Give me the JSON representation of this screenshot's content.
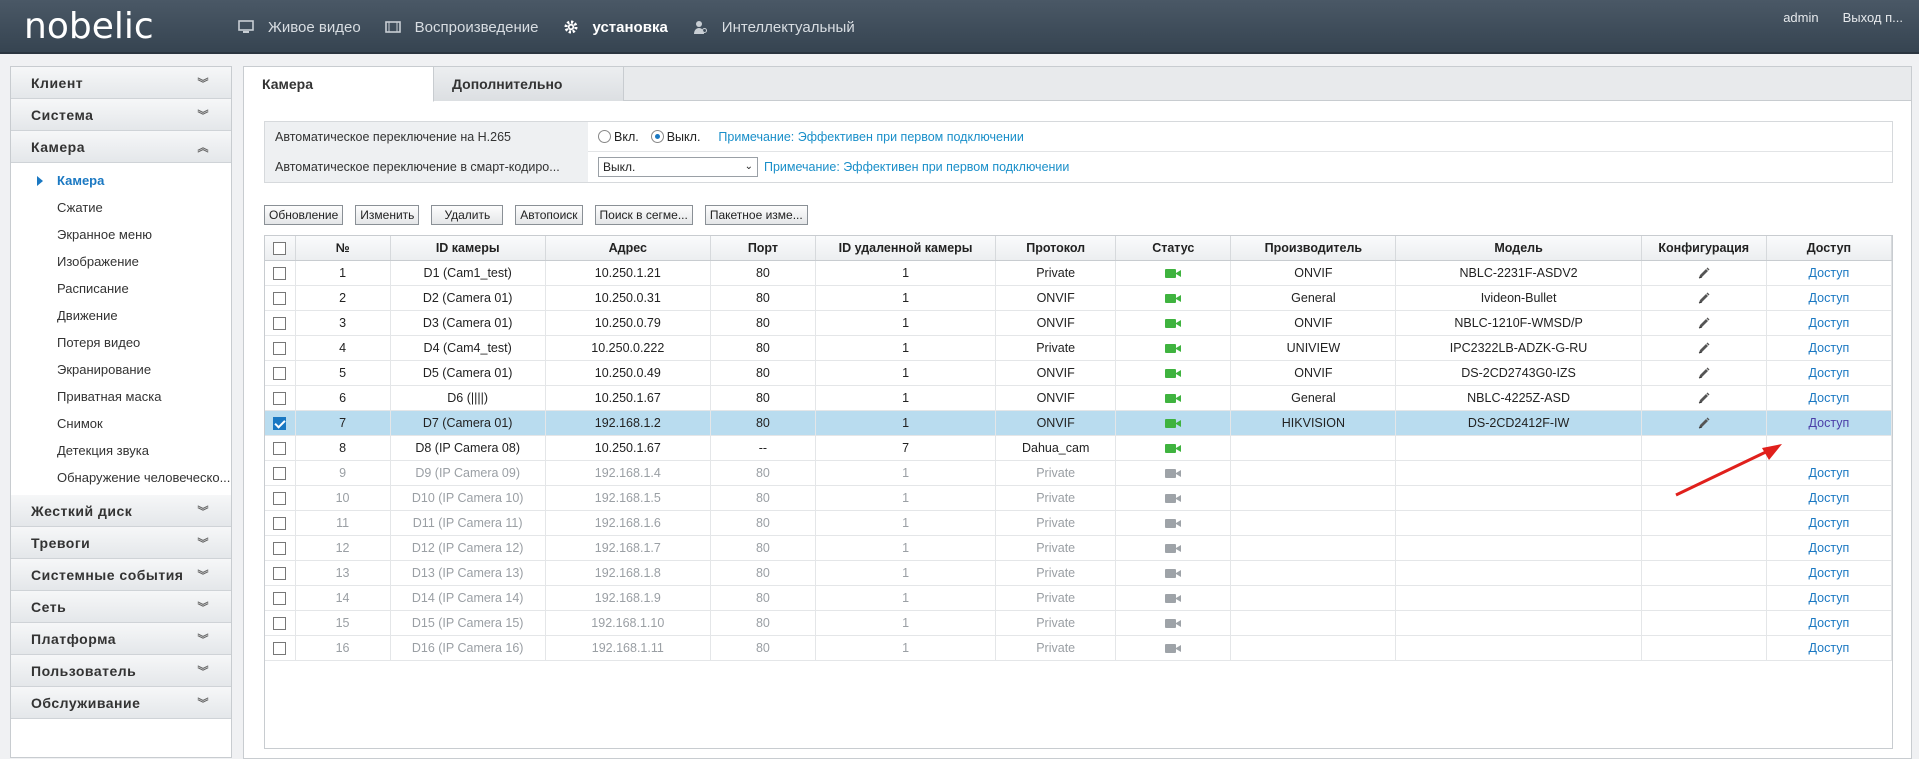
{
  "brand": {
    "logo": "nobelic"
  },
  "nav": [
    {
      "label": "Живое видео",
      "icon": "monitor-icon",
      "active": false
    },
    {
      "label": "Воспроизведение",
      "icon": "film-icon",
      "active": false
    },
    {
      "label": "установка",
      "icon": "gear-icon",
      "active": true
    },
    {
      "label": "Интеллектуальный",
      "icon": "person-icon",
      "active": false
    }
  ],
  "user": {
    "name": "admin",
    "logout": "Выход п..."
  },
  "sidebar": {
    "sections_top": [
      {
        "label": "Клиент"
      },
      {
        "label": "Система"
      }
    ],
    "camera_section": {
      "label": "Камера"
    },
    "camera_items": [
      {
        "label": "Камера",
        "active": true
      },
      {
        "label": "Сжатие"
      },
      {
        "label": "Экранное меню"
      },
      {
        "label": "Изображение"
      },
      {
        "label": "Расписание"
      },
      {
        "label": "Движение"
      },
      {
        "label": "Потеря видео"
      },
      {
        "label": "Экранирование"
      },
      {
        "label": "Приватная маска"
      },
      {
        "label": "Снимок"
      },
      {
        "label": "Детекция звука"
      },
      {
        "label": "Обнаружение человеческо..."
      }
    ],
    "sections_bottom": [
      {
        "label": "Жесткий диск"
      },
      {
        "label": "Тревоги"
      },
      {
        "label": "Системные события"
      },
      {
        "label": "Сеть"
      },
      {
        "label": "Платформа"
      },
      {
        "label": "Пользователь"
      },
      {
        "label": "Обслуживание"
      }
    ]
  },
  "tabs": [
    {
      "label": "Камера",
      "active": true
    },
    {
      "label": "Дополнительно",
      "active": false
    }
  ],
  "settings": {
    "h265": {
      "label": "Автоматическое переключение на H.265",
      "on_label": "Вкл.",
      "off_label": "Выкл.",
      "selected": "off",
      "note": "Примечание: Эффективен при первом подключении"
    },
    "smart": {
      "label": "Автоматическое переключение в смарт-кодиро...",
      "value": "Выкл.",
      "note": "Примечание: Эффективен при первом подключении"
    }
  },
  "toolbar": {
    "refresh": "Обновление",
    "edit": "Изменить",
    "delete": "Удалить",
    "autosearch": "Автопоиск",
    "segment_search": "Поиск в сегме...",
    "batch_edit": "Пакетное изме..."
  },
  "table": {
    "headers": {
      "num": "№",
      "cam_id": "ID камеры",
      "address": "Адрес",
      "port": "Порт",
      "remote_id": "ID удаленной камеры",
      "protocol": "Протокол",
      "status": "Статус",
      "vendor": "Производитель",
      "model": "Модель",
      "config": "Конфигурация",
      "access": "Доступ"
    },
    "rows": [
      {
        "num": "1",
        "cam_id": "D1 (Cam1_test)",
        "address": "10.250.1.21",
        "port": "80",
        "remote_id": "1",
        "protocol": "Private",
        "online": true,
        "vendor": "ONVIF",
        "model": "NBLC-2231F-ASDV2",
        "config": true,
        "access": "Доступ",
        "checked": false,
        "dim": false,
        "selected": false
      },
      {
        "num": "2",
        "cam_id": "D2 (Camera 01)",
        "address": "10.250.0.31",
        "port": "80",
        "remote_id": "1",
        "protocol": "ONVIF",
        "online": true,
        "vendor": "General",
        "model": "Ivideon-Bullet",
        "config": true,
        "access": "Доступ",
        "checked": false,
        "dim": false,
        "selected": false
      },
      {
        "num": "3",
        "cam_id": "D3 (Camera 01)",
        "address": "10.250.0.79",
        "port": "80",
        "remote_id": "1",
        "protocol": "ONVIF",
        "online": true,
        "vendor": "ONVIF",
        "model": "NBLC-1210F-WMSD/P",
        "config": true,
        "access": "Доступ",
        "checked": false,
        "dim": false,
        "selected": false
      },
      {
        "num": "4",
        "cam_id": "D4 (Cam4_test)",
        "address": "10.250.0.222",
        "port": "80",
        "remote_id": "1",
        "protocol": "Private",
        "online": true,
        "vendor": "UNIVIEW",
        "model": "IPC2322LB-ADZK-G-RU",
        "config": true,
        "access": "Доступ",
        "checked": false,
        "dim": false,
        "selected": false
      },
      {
        "num": "5",
        "cam_id": "D5 (Camera 01)",
        "address": "10.250.0.49",
        "port": "80",
        "remote_id": "1",
        "protocol": "ONVIF",
        "online": true,
        "vendor": "ONVIF",
        "model": "DS-2CD2743G0-IZS",
        "config": true,
        "access": "Доступ",
        "checked": false,
        "dim": false,
        "selected": false
      },
      {
        "num": "6",
        "cam_id": "D6 (||||)",
        "address": "10.250.1.67",
        "port": "80",
        "remote_id": "1",
        "protocol": "ONVIF",
        "online": true,
        "vendor": "General",
        "model": "NBLC-4225Z-ASD",
        "config": true,
        "access": "Доступ",
        "checked": false,
        "dim": false,
        "selected": false
      },
      {
        "num": "7",
        "cam_id": "D7 (Camera 01)",
        "address": "192.168.1.2",
        "port": "80",
        "remote_id": "1",
        "protocol": "ONVIF",
        "online": true,
        "vendor": "HIKVISION",
        "model": "DS-2CD2412F-IW",
        "config": true,
        "access": "Доступ",
        "checked": true,
        "dim": false,
        "selected": true
      },
      {
        "num": "8",
        "cam_id": "D8 (IP Camera 08)",
        "address": "10.250.1.67",
        "port": "--",
        "remote_id": "7",
        "protocol": "Dahua_cam",
        "online": true,
        "vendor": "",
        "model": "",
        "config": false,
        "access": "",
        "checked": false,
        "dim": false,
        "selected": false
      },
      {
        "num": "9",
        "cam_id": "D9 (IP Camera 09)",
        "address": "192.168.1.4",
        "port": "80",
        "remote_id": "1",
        "protocol": "Private",
        "online": false,
        "vendor": "",
        "model": "",
        "config": false,
        "access": "Доступ",
        "checked": false,
        "dim": true,
        "selected": false
      },
      {
        "num": "10",
        "cam_id": "D10 (IP Camera 10)",
        "address": "192.168.1.5",
        "port": "80",
        "remote_id": "1",
        "protocol": "Private",
        "online": false,
        "vendor": "",
        "model": "",
        "config": false,
        "access": "Доступ",
        "checked": false,
        "dim": true,
        "selected": false
      },
      {
        "num": "11",
        "cam_id": "D11 (IP Camera 11)",
        "address": "192.168.1.6",
        "port": "80",
        "remote_id": "1",
        "protocol": "Private",
        "online": false,
        "vendor": "",
        "model": "",
        "config": false,
        "access": "Доступ",
        "checked": false,
        "dim": true,
        "selected": false
      },
      {
        "num": "12",
        "cam_id": "D12 (IP Camera 12)",
        "address": "192.168.1.7",
        "port": "80",
        "remote_id": "1",
        "protocol": "Private",
        "online": false,
        "vendor": "",
        "model": "",
        "config": false,
        "access": "Доступ",
        "checked": false,
        "dim": true,
        "selected": false
      },
      {
        "num": "13",
        "cam_id": "D13 (IP Camera 13)",
        "address": "192.168.1.8",
        "port": "80",
        "remote_id": "1",
        "protocol": "Private",
        "online": false,
        "vendor": "",
        "model": "",
        "config": false,
        "access": "Доступ",
        "checked": false,
        "dim": true,
        "selected": false
      },
      {
        "num": "14",
        "cam_id": "D14 (IP Camera 14)",
        "address": "192.168.1.9",
        "port": "80",
        "remote_id": "1",
        "protocol": "Private",
        "online": false,
        "vendor": "",
        "model": "",
        "config": false,
        "access": "Доступ",
        "checked": false,
        "dim": true,
        "selected": false
      },
      {
        "num": "15",
        "cam_id": "D15 (IP Camera 15)",
        "address": "192.168.1.10",
        "port": "80",
        "remote_id": "1",
        "protocol": "Private",
        "online": false,
        "vendor": "",
        "model": "",
        "config": false,
        "access": "Доступ",
        "checked": false,
        "dim": true,
        "selected": false
      },
      {
        "num": "16",
        "cam_id": "D16 (IP Camera 16)",
        "address": "192.168.1.11",
        "port": "80",
        "remote_id": "1",
        "protocol": "Private",
        "online": false,
        "vendor": "",
        "model": "",
        "config": false,
        "access": "Доступ",
        "checked": false,
        "dim": true,
        "selected": false
      }
    ]
  },
  "colors": {
    "accent": "#1a78c2",
    "online": "#3fb33f",
    "offline": "#9ea3a8",
    "selected_row": "#b9dcef",
    "annotation": "#e0201c"
  }
}
